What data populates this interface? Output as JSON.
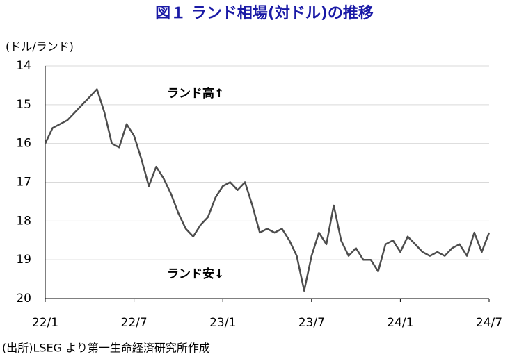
{
  "chart_data": {
    "type": "line",
    "title": "図１ ランド相場(対ドル)の推移",
    "y_label": "(ドル/ランド)",
    "annotations": [
      "ランド高↑",
      "ランド安↓"
    ],
    "source": "(出所)LSEG より第一生命経済研究所作成",
    "categories": [
      "22/1",
      null,
      null,
      null,
      null,
      null,
      null,
      null,
      null,
      null,
      null,
      null,
      "22/7",
      null,
      null,
      null,
      null,
      null,
      null,
      null,
      null,
      null,
      null,
      null,
      "23/1",
      null,
      null,
      null,
      null,
      null,
      null,
      null,
      null,
      null,
      null,
      null,
      "23/7",
      null,
      null,
      null,
      null,
      null,
      null,
      null,
      null,
      null,
      null,
      null,
      "24/1",
      null,
      null,
      null,
      null,
      null,
      null,
      null,
      null,
      null,
      null,
      null,
      "24/7"
    ],
    "values": [
      16.0,
      15.6,
      15.5,
      15.4,
      15.2,
      15.0,
      14.8,
      14.6,
      15.2,
      16.0,
      16.1,
      15.5,
      15.8,
      16.4,
      17.1,
      16.6,
      16.9,
      17.3,
      17.8,
      18.2,
      18.4,
      18.1,
      17.9,
      17.4,
      17.1,
      17.0,
      17.2,
      17.0,
      17.6,
      18.3,
      18.2,
      18.3,
      18.2,
      18.5,
      18.9,
      19.8,
      18.9,
      18.3,
      18.6,
      17.6,
      18.5,
      18.9,
      18.7,
      19.0,
      19.0,
      19.3,
      18.6,
      18.5,
      18.8,
      18.4,
      18.6,
      18.8,
      18.9,
      18.8,
      18.9,
      18.7,
      18.6,
      18.9,
      18.3,
      18.8,
      18.3
    ],
    "color": "#4d4d4d",
    "ylim": [
      20,
      14
    ],
    "yticks": [
      14,
      15,
      16,
      17,
      18,
      19,
      20
    ],
    "grid": true
  }
}
